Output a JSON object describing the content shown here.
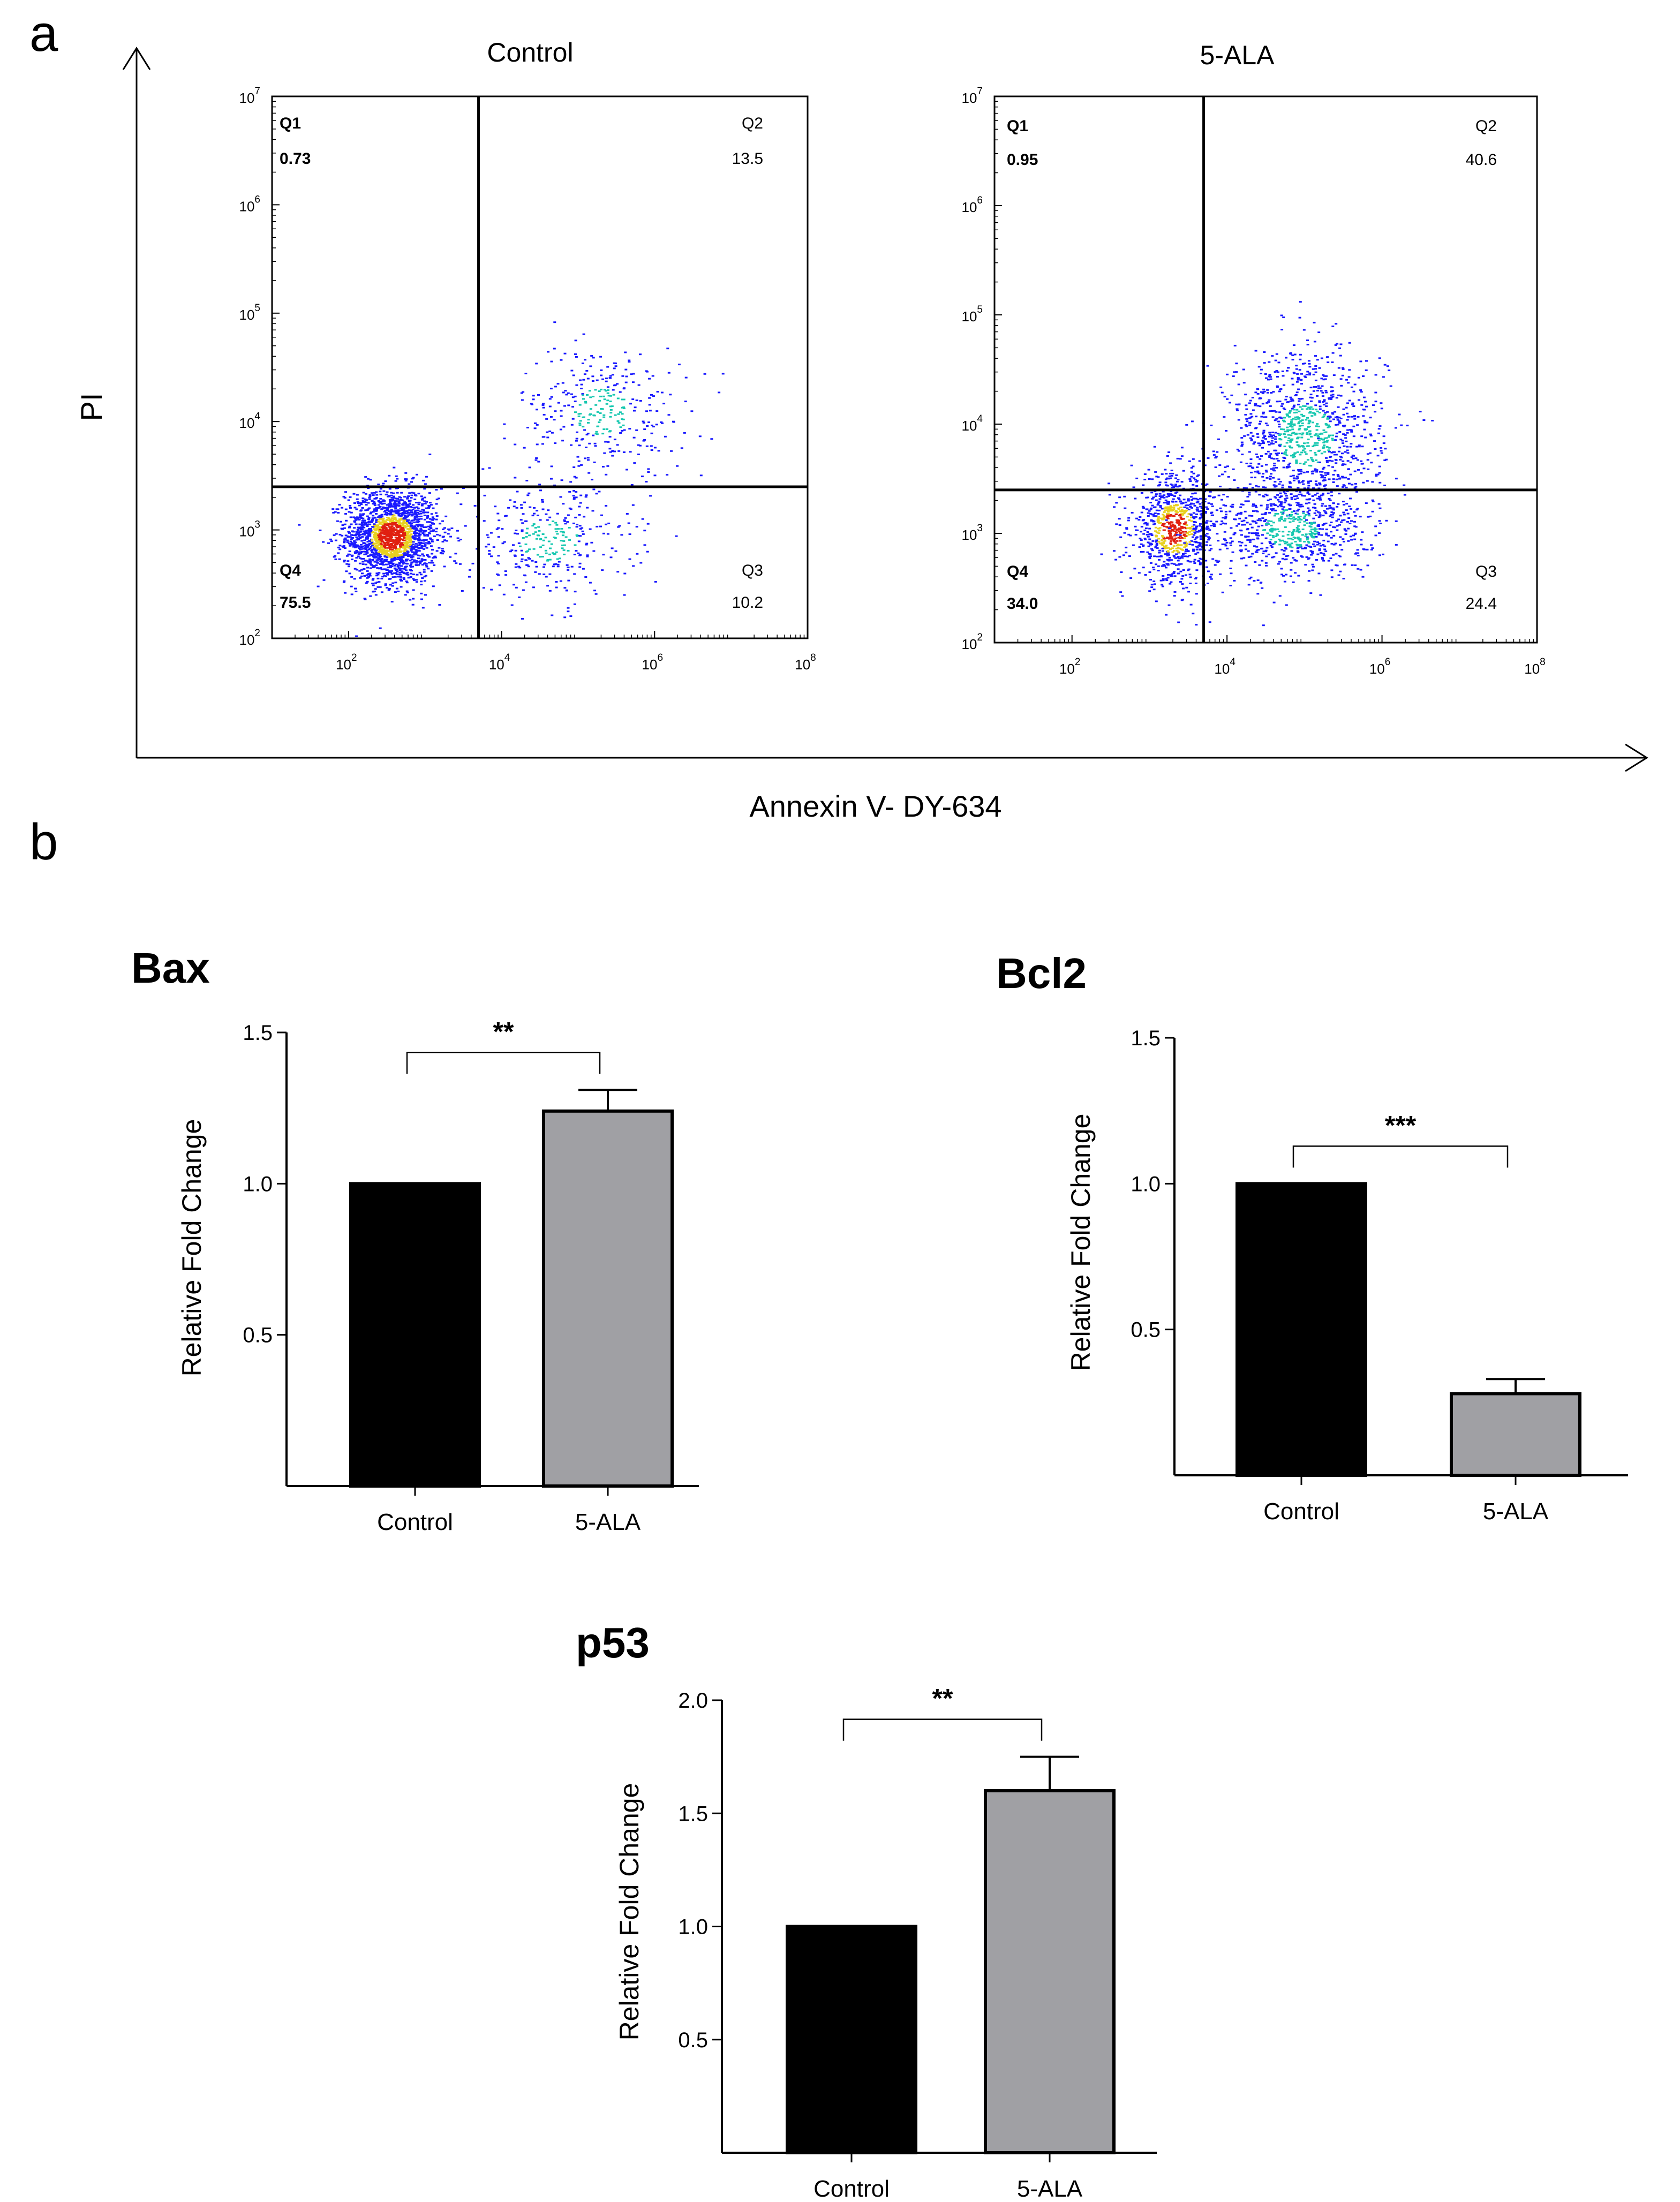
{
  "panels": {
    "a": "a",
    "b": "b"
  },
  "flow": {
    "y_axis_title": "PI",
    "x_axis_title": "Annexin V- DY-634",
    "y_ticks": [
      {
        "base": "10",
        "exp": "2"
      },
      {
        "base": "10",
        "exp": "3"
      },
      {
        "base": "10",
        "exp": "4"
      },
      {
        "base": "10",
        "exp": "5"
      },
      {
        "base": "10",
        "exp": "6"
      },
      {
        "base": "10",
        "exp": "7"
      }
    ],
    "x_ticks": [
      {
        "base": "10",
        "exp": "2"
      },
      {
        "base": "10",
        "exp": "4"
      },
      {
        "base": "10",
        "exp": "6"
      },
      {
        "base": "10",
        "exp": "8"
      }
    ],
    "colors": {
      "cells": "#1a1aff",
      "mid": "#18c8b0",
      "hot": "#e8d020",
      "core": "#e02010"
    }
  },
  "chart_data": [
    {
      "type": "scatter",
      "title": "Control",
      "xlabel": "Annexin V- DY-634",
      "ylabel": "PI",
      "x_scale": "log10",
      "y_scale": "log10",
      "xlim": [
        10,
        100000000
      ],
      "ylim": [
        100,
        10000000
      ],
      "gate": {
        "x": 5000,
        "y": 2500
      },
      "quadrants": [
        {
          "name": "Q1",
          "value": "0.73",
          "bold": true
        },
        {
          "name": "Q2",
          "value": "13.5",
          "bold": false
        },
        {
          "name": "Q3",
          "value": "10.2",
          "bold": false
        },
        {
          "name": "Q4",
          "value": "75.5",
          "bold": true
        }
      ],
      "populations": [
        {
          "weight": 0.74,
          "mx": 2.55,
          "my": 2.95,
          "sx": 0.3,
          "sy": 0.22
        },
        {
          "weight": 0.13,
          "mx": 5.3,
          "my": 4.1,
          "sx": 0.55,
          "sy": 0.3
        },
        {
          "weight": 0.13,
          "mx": 4.6,
          "my": 2.9,
          "sx": 0.55,
          "sy": 0.28
        }
      ]
    },
    {
      "type": "scatter",
      "title": "5-ALA",
      "xlabel": "Annexin V- DY-634",
      "ylabel": "PI",
      "x_scale": "log10",
      "y_scale": "log10",
      "xlim": [
        10,
        100000000
      ],
      "ylim": [
        100,
        10000000
      ],
      "gate": {
        "x": 5000,
        "y": 2500
      },
      "quadrants": [
        {
          "name": "Q1",
          "value": "0.95",
          "bold": true
        },
        {
          "name": "Q2",
          "value": "40.6",
          "bold": false
        },
        {
          "name": "Q3",
          "value": "24.4",
          "bold": false
        },
        {
          "name": "Q4",
          "value": "34.0",
          "bold": true
        }
      ],
      "populations": [
        {
          "weight": 0.33,
          "mx": 3.3,
          "my": 3.05,
          "sx": 0.28,
          "sy": 0.25
        },
        {
          "weight": 0.41,
          "mx": 5.0,
          "my": 3.9,
          "sx": 0.5,
          "sy": 0.4
        },
        {
          "weight": 0.26,
          "mx": 4.8,
          "my": 3.05,
          "sx": 0.5,
          "sy": 0.25
        }
      ]
    },
    {
      "type": "bar",
      "title": "Bax",
      "ylabel": "Relative Fold Change",
      "categories": [
        "Control",
        "5-ALA"
      ],
      "values": [
        1.0,
        1.24
      ],
      "errors": [
        0,
        0.07
      ],
      "bar_colors": [
        "#000000",
        "#a0a0a4"
      ],
      "ylim": [
        0,
        1.5
      ],
      "yticks": [
        "0.5",
        "1.0",
        "1.5"
      ],
      "significance": "**"
    },
    {
      "type": "bar",
      "title": "Bcl2",
      "ylabel": "Relative Fold Change",
      "categories": [
        "Control",
        "5-ALA"
      ],
      "values": [
        1.0,
        0.28
      ],
      "errors": [
        0,
        0.05
      ],
      "bar_colors": [
        "#000000",
        "#a0a0a4"
      ],
      "ylim": [
        0,
        1.5
      ],
      "yticks": [
        "0.5",
        "1.0",
        "1.5"
      ],
      "significance": "***"
    },
    {
      "type": "bar",
      "title": "p53",
      "ylabel": "Relative Fold Change",
      "categories": [
        "Control",
        "5-ALA"
      ],
      "values": [
        1.0,
        1.6
      ],
      "errors": [
        0,
        0.15
      ],
      "bar_colors": [
        "#000000",
        "#a0a0a4"
      ],
      "ylim": [
        0,
        2.0
      ],
      "yticks": [
        "0.5",
        "1.0",
        "1.5",
        "2.0"
      ],
      "significance": "**"
    }
  ]
}
